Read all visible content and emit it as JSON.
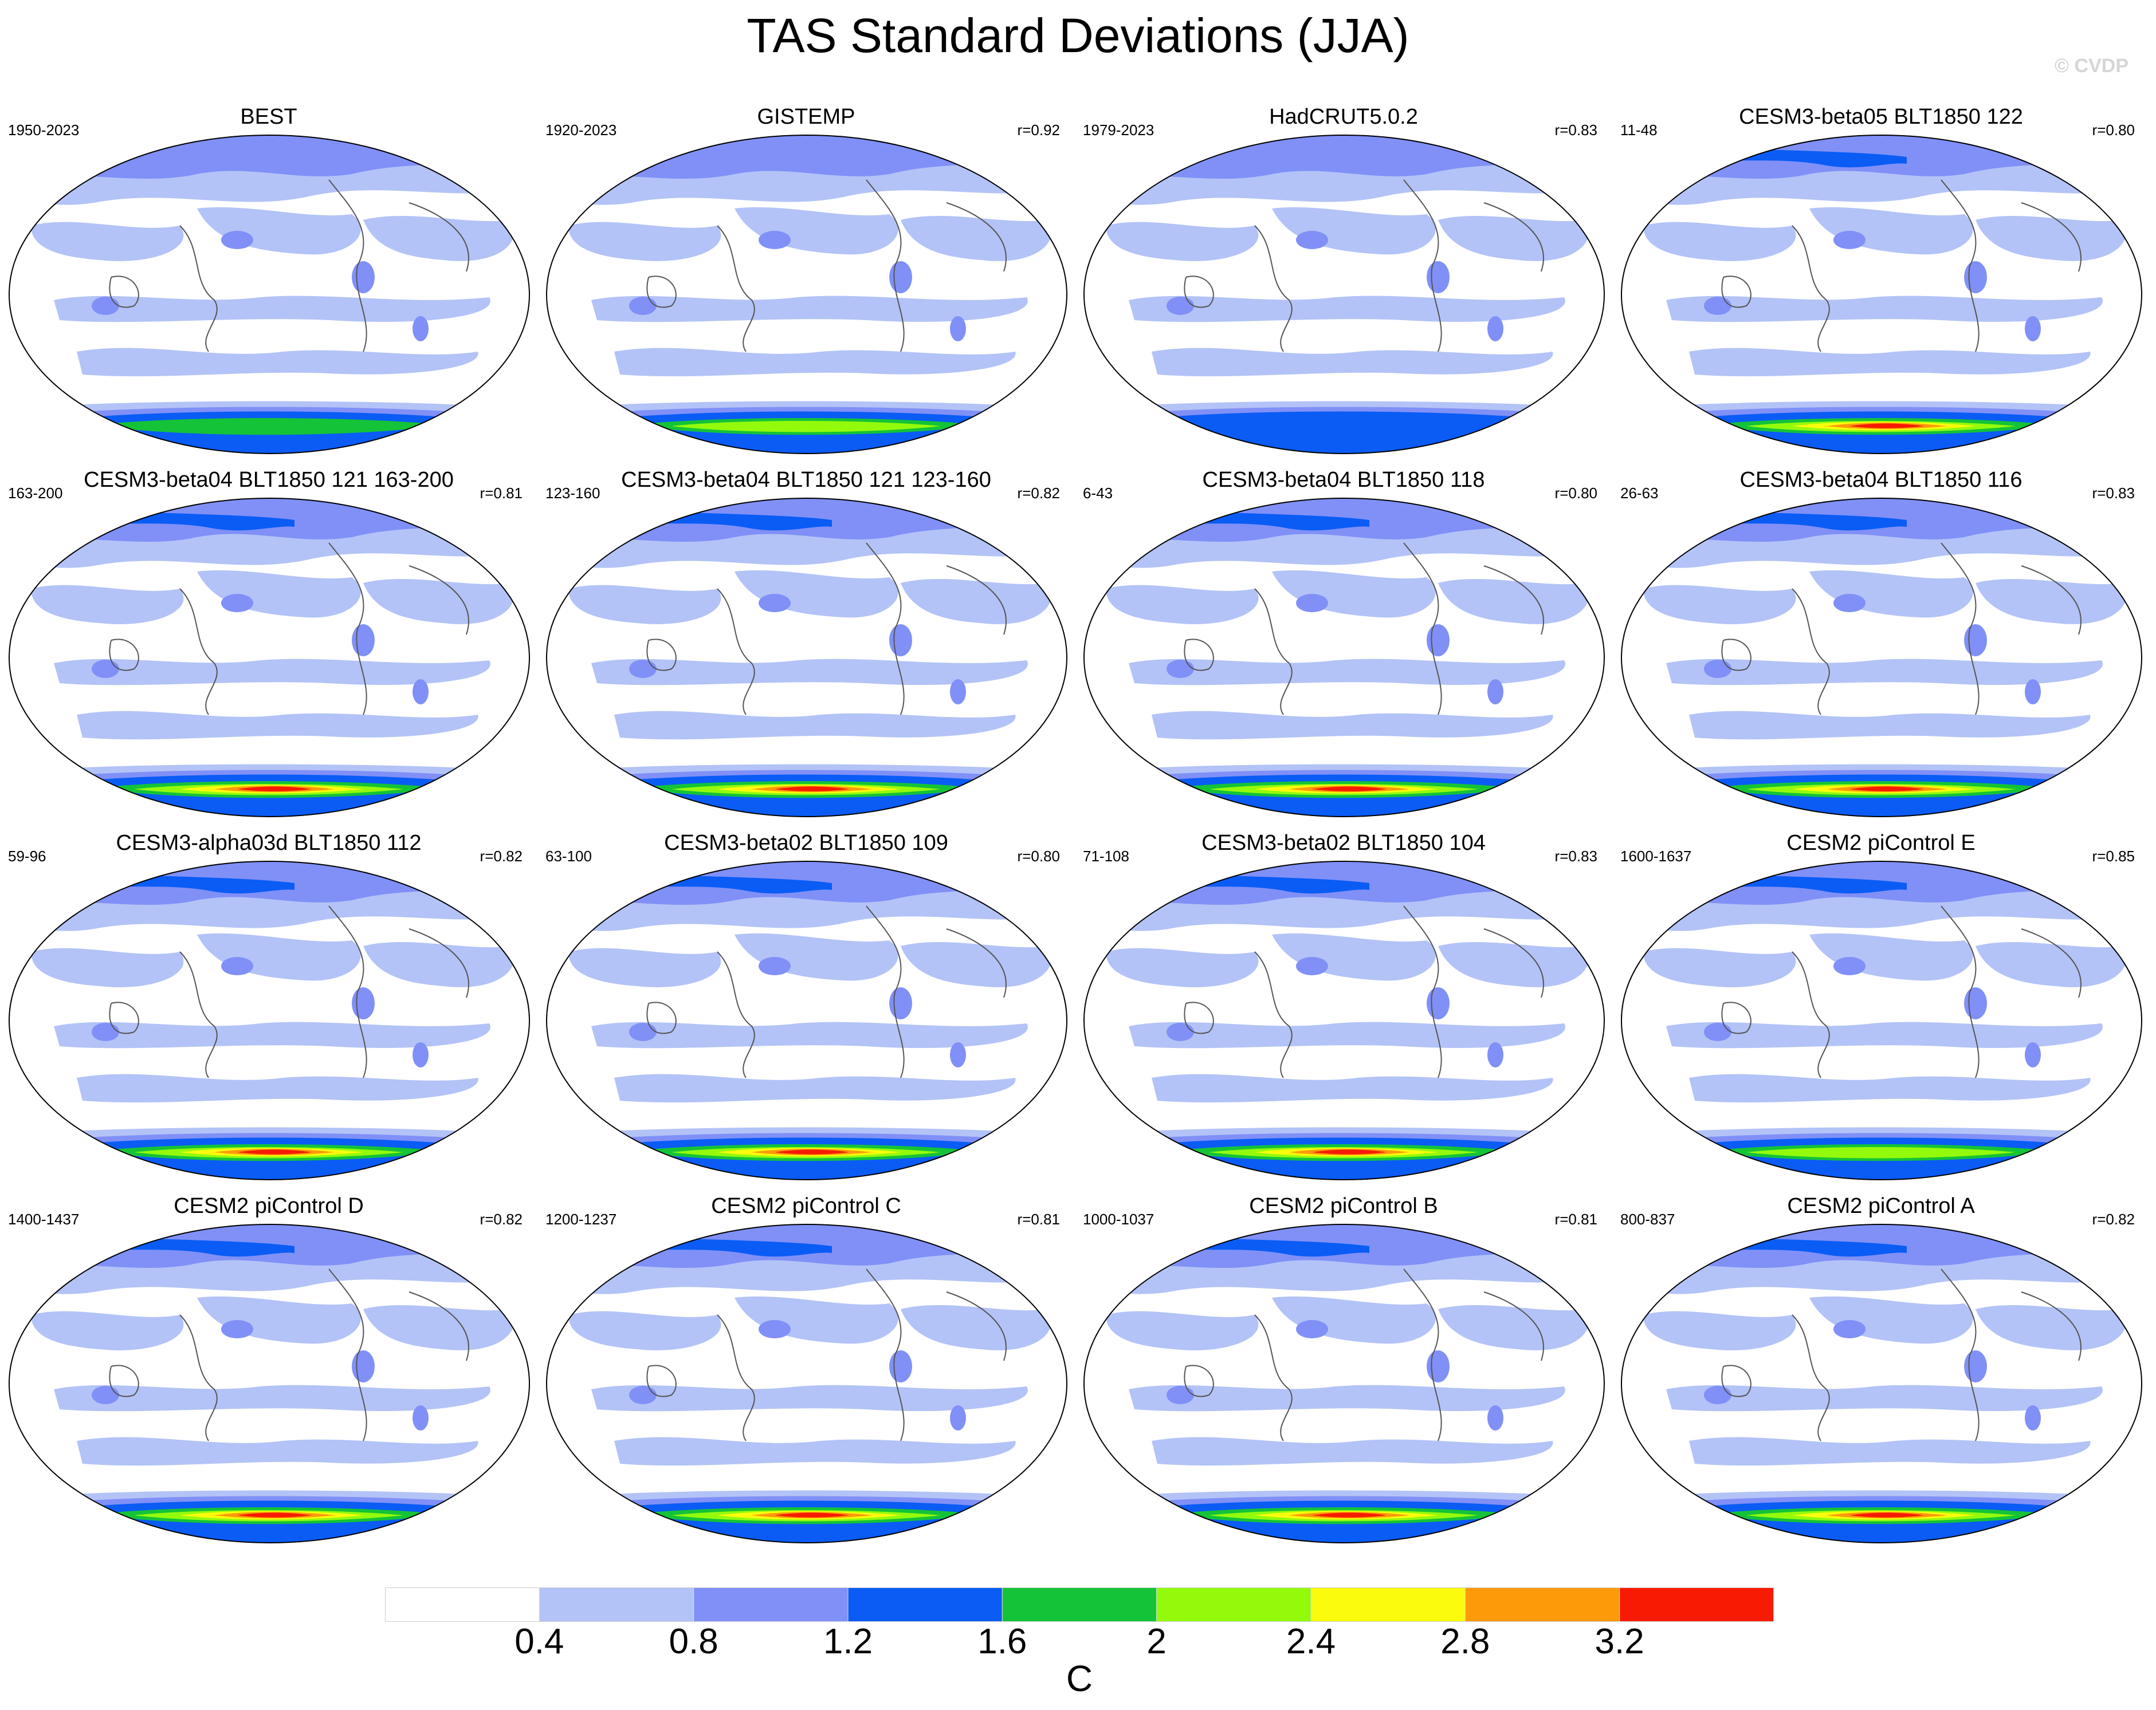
{
  "title": "TAS Standard Deviations (JJA)",
  "watermark": "© CVDP",
  "chart_data": {
    "type": "heatmap",
    "variable": "TAS",
    "season": "JJA",
    "projection": "global map (Robinson-like)",
    "colorbar": {
      "levels": [
        0.4,
        0.8,
        1.2,
        1.6,
        2.0,
        2.4,
        2.8,
        3.2
      ],
      "labels": [
        "0.4",
        "0.8",
        "1.2",
        "1.6",
        "2",
        "2.4",
        "2.8",
        "3.2"
      ],
      "colors": [
        "#ffffff",
        "#b3c3f7",
        "#8090f7",
        "#0a5cf5",
        "#14c337",
        "#94fa0c",
        "#fbfb0d",
        "#fc9a0a",
        "#f71b03"
      ],
      "units": "C"
    },
    "panels": [
      {
        "name": "BEST",
        "years": "1950-2023",
        "r": "",
        "max_class": 4,
        "pattern": "obs"
      },
      {
        "name": "GISTEMP",
        "years": "1920-2023",
        "r": "r=0.92",
        "max_class": 5,
        "pattern": "obs"
      },
      {
        "name": "HadCRUT5.0.2",
        "years": "1979-2023",
        "r": "r=0.83",
        "max_class": 3,
        "pattern": "obs"
      },
      {
        "name": "CESM3-beta05 BLT1850 122",
        "years": "11-48",
        "r": "r=0.80",
        "max_class": 8,
        "pattern": "model"
      },
      {
        "name": "CESM3-beta04 BLT1850 121 163-200",
        "years": "163-200",
        "r": "r=0.81",
        "max_class": 8,
        "pattern": "model"
      },
      {
        "name": "CESM3-beta04 BLT1850 121 123-160",
        "years": "123-160",
        "r": "r=0.82",
        "max_class": 8,
        "pattern": "model"
      },
      {
        "name": "CESM3-beta04 BLT1850 118",
        "years": "6-43",
        "r": "r=0.80",
        "max_class": 8,
        "pattern": "model"
      },
      {
        "name": "CESM3-beta04 BLT1850 116",
        "years": "26-63",
        "r": "r=0.83",
        "max_class": 8,
        "pattern": "model"
      },
      {
        "name": "CESM3-alpha03d BLT1850 112",
        "years": "59-96",
        "r": "r=0.82",
        "max_class": 8,
        "pattern": "model"
      },
      {
        "name": "CESM3-beta02 BLT1850 109",
        "years": "63-100",
        "r": "r=0.80",
        "max_class": 8,
        "pattern": "model"
      },
      {
        "name": "CESM3-beta02 BLT1850 104",
        "years": "71-108",
        "r": "r=0.83",
        "max_class": 8,
        "pattern": "model"
      },
      {
        "name": "CESM2 piControl E",
        "years": "1600-1637",
        "r": "r=0.85",
        "max_class": 5,
        "pattern": "model"
      },
      {
        "name": "CESM2 piControl D",
        "years": "1400-1437",
        "r": "r=0.82",
        "max_class": 8,
        "pattern": "model"
      },
      {
        "name": "CESM2 piControl C",
        "years": "1200-1237",
        "r": "r=0.81",
        "max_class": 8,
        "pattern": "model"
      },
      {
        "name": "CESM2 piControl B",
        "years": "1000-1037",
        "r": "r=0.81",
        "max_class": 8,
        "pattern": "model"
      },
      {
        "name": "CESM2 piControl A",
        "years": "800-837",
        "r": "r=0.82",
        "max_class": 8,
        "pattern": "model"
      }
    ]
  }
}
